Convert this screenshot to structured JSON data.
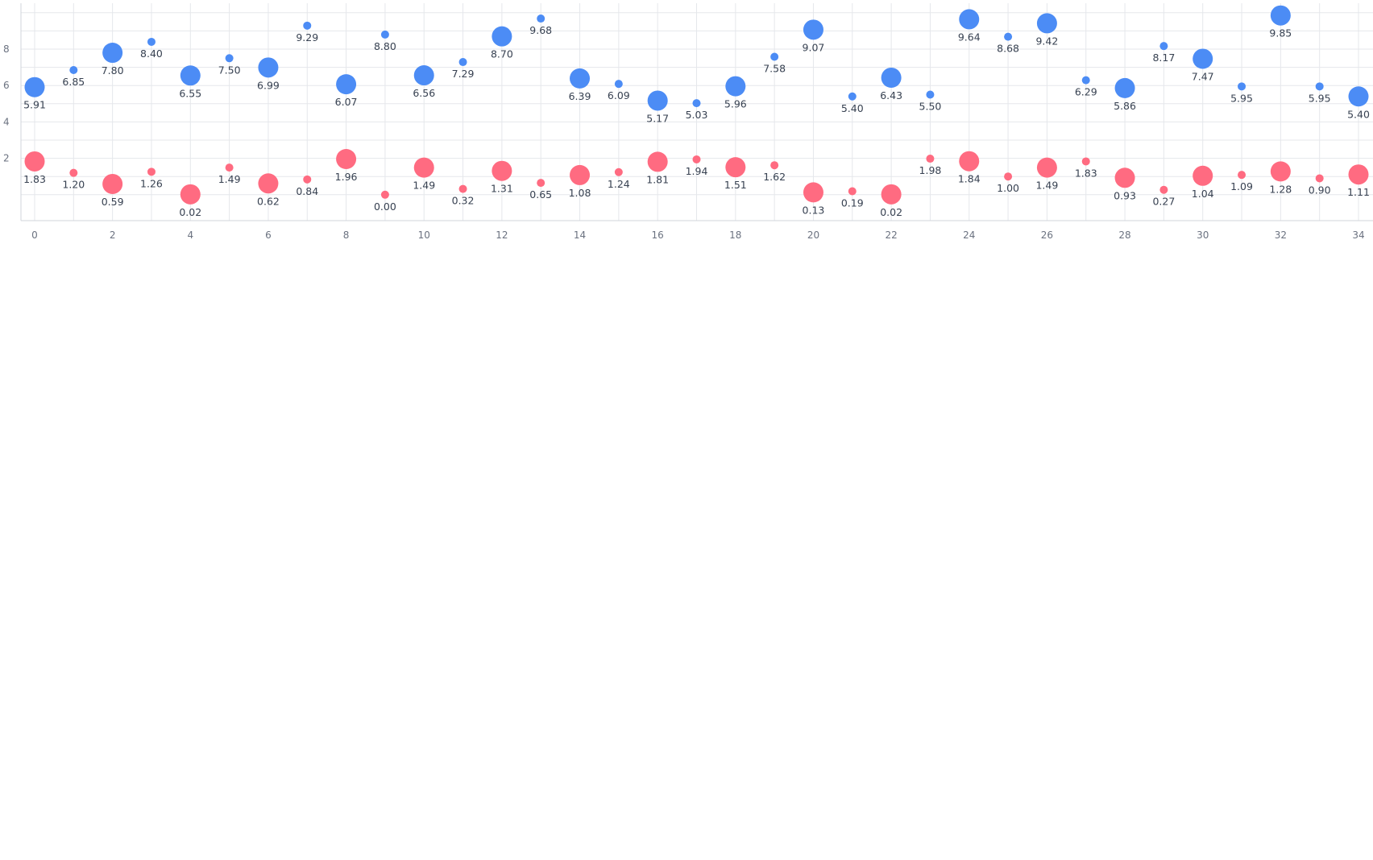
{
  "chart_data": {
    "type": "scatter",
    "title": "",
    "xlabel": "",
    "ylabel": "",
    "grid": true,
    "legend": "none",
    "xlim": [
      0,
      34
    ],
    "ylim": [
      -1,
      11
    ],
    "x_ticks": [
      "0",
      "2",
      "4",
      "6",
      "8",
      "10",
      "12",
      "14",
      "16",
      "18",
      "20",
      "22",
      "24",
      "26",
      "28",
      "30",
      "32",
      "34"
    ],
    "y_ticks": [
      "2",
      "4",
      "6",
      "8"
    ],
    "x": [
      0,
      1,
      2,
      3,
      4,
      5,
      6,
      7,
      8,
      9,
      10,
      11,
      12,
      13,
      14,
      15,
      16,
      17,
      18,
      19,
      20,
      21,
      22,
      23,
      24,
      25,
      26,
      27,
      28,
      29,
      30,
      31,
      32,
      33,
      34
    ],
    "bubble_size_pattern": "large on even x, small on odd x",
    "series": [
      {
        "color": "#4c8cf5",
        "values": [
          5.91,
          6.85,
          7.8,
          8.4,
          6.55,
          7.5,
          6.99,
          9.29,
          6.07,
          8.8,
          6.56,
          7.29,
          8.7,
          9.68,
          6.39,
          6.09,
          5.17,
          5.03,
          5.96,
          7.58,
          9.07,
          5.4,
          6.43,
          5.5,
          9.64,
          8.68,
          9.42,
          6.29,
          5.86,
          8.17,
          7.47,
          5.95,
          9.85,
          5.95,
          5.4
        ],
        "labels": [
          "5.91",
          "6.85",
          "7.80",
          "8.40",
          "6.55",
          "7.50",
          "6.99",
          "9.29",
          "6.07",
          "8.80",
          "6.56",
          "7.29",
          "8.70",
          "9.68",
          "6.39",
          "6.09",
          "5.17",
          "5.03",
          "5.96",
          "7.58",
          "9.07",
          "5.40",
          "6.43",
          "5.50",
          "9.64",
          "8.68",
          "9.42",
          "6.29",
          "5.86",
          "8.17",
          "7.47",
          "5.95",
          "9.85",
          "5.95",
          "5.40"
        ]
      },
      {
        "color": "#ff6b81",
        "values": [
          1.83,
          1.2,
          0.59,
          1.26,
          0.02,
          1.49,
          0.62,
          0.84,
          1.96,
          0.0,
          1.49,
          0.32,
          1.31,
          0.65,
          1.08,
          1.24,
          1.81,
          1.94,
          1.51,
          1.62,
          0.13,
          0.19,
          0.02,
          1.98,
          1.84,
          1.0,
          1.49,
          1.83,
          0.93,
          0.27,
          1.04,
          1.09,
          1.28,
          0.9,
          1.11
        ],
        "labels": [
          "1.83",
          "1.20",
          "0.59",
          "1.26",
          "0.02",
          "1.49",
          "0.62",
          "0.84",
          "1.96",
          "0.00",
          "1.49",
          "0.32",
          "1.31",
          "0.65",
          "1.08",
          "1.24",
          "1.81",
          "1.94",
          "1.51",
          "1.62",
          "0.13",
          "0.19",
          "0.02",
          "1.98",
          "1.84",
          "1.00",
          "1.49",
          "1.83",
          "0.93",
          "0.27",
          "1.04",
          "1.09",
          "1.28",
          "0.90",
          "1.11"
        ]
      }
    ]
  }
}
